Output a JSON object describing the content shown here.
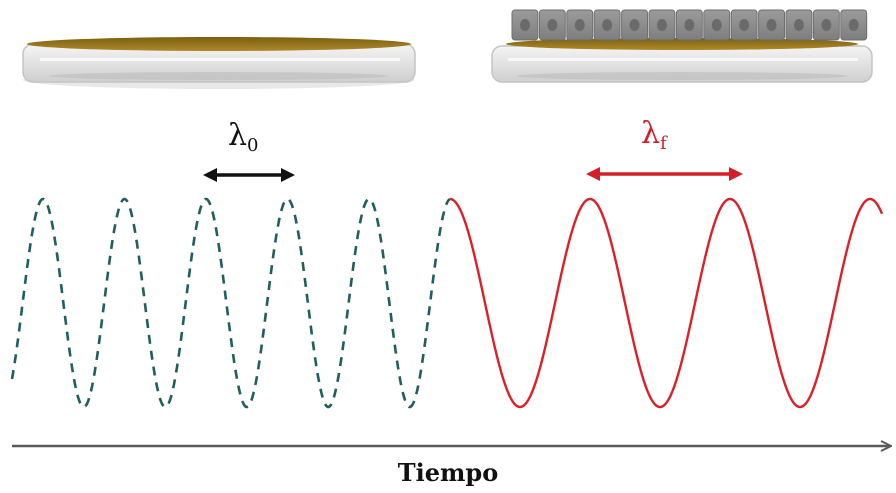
{
  "labels": {
    "lambda_initial": {
      "symbol": "λ",
      "subscript": "0"
    },
    "lambda_final": {
      "symbol": "λ",
      "subscript": "f"
    },
    "time_axis": "Tiempo"
  },
  "colors": {
    "initial_wave": "#1f5f5f",
    "final_wave": "#dc1f28",
    "axis": "#595959",
    "arrow_initial": "#111111",
    "arrow_final": "#d51f28",
    "medium": "#9a7a1f",
    "cells": "#8c8c8c"
  },
  "waves": {
    "initial": {
      "style": "dashed",
      "label": "λ0"
    },
    "final": {
      "style": "solid",
      "label": "λf"
    }
  },
  "dishes": {
    "left": {
      "content": "medium-only"
    },
    "right": {
      "content": "cell-monolayer",
      "cell_count": 13
    }
  }
}
